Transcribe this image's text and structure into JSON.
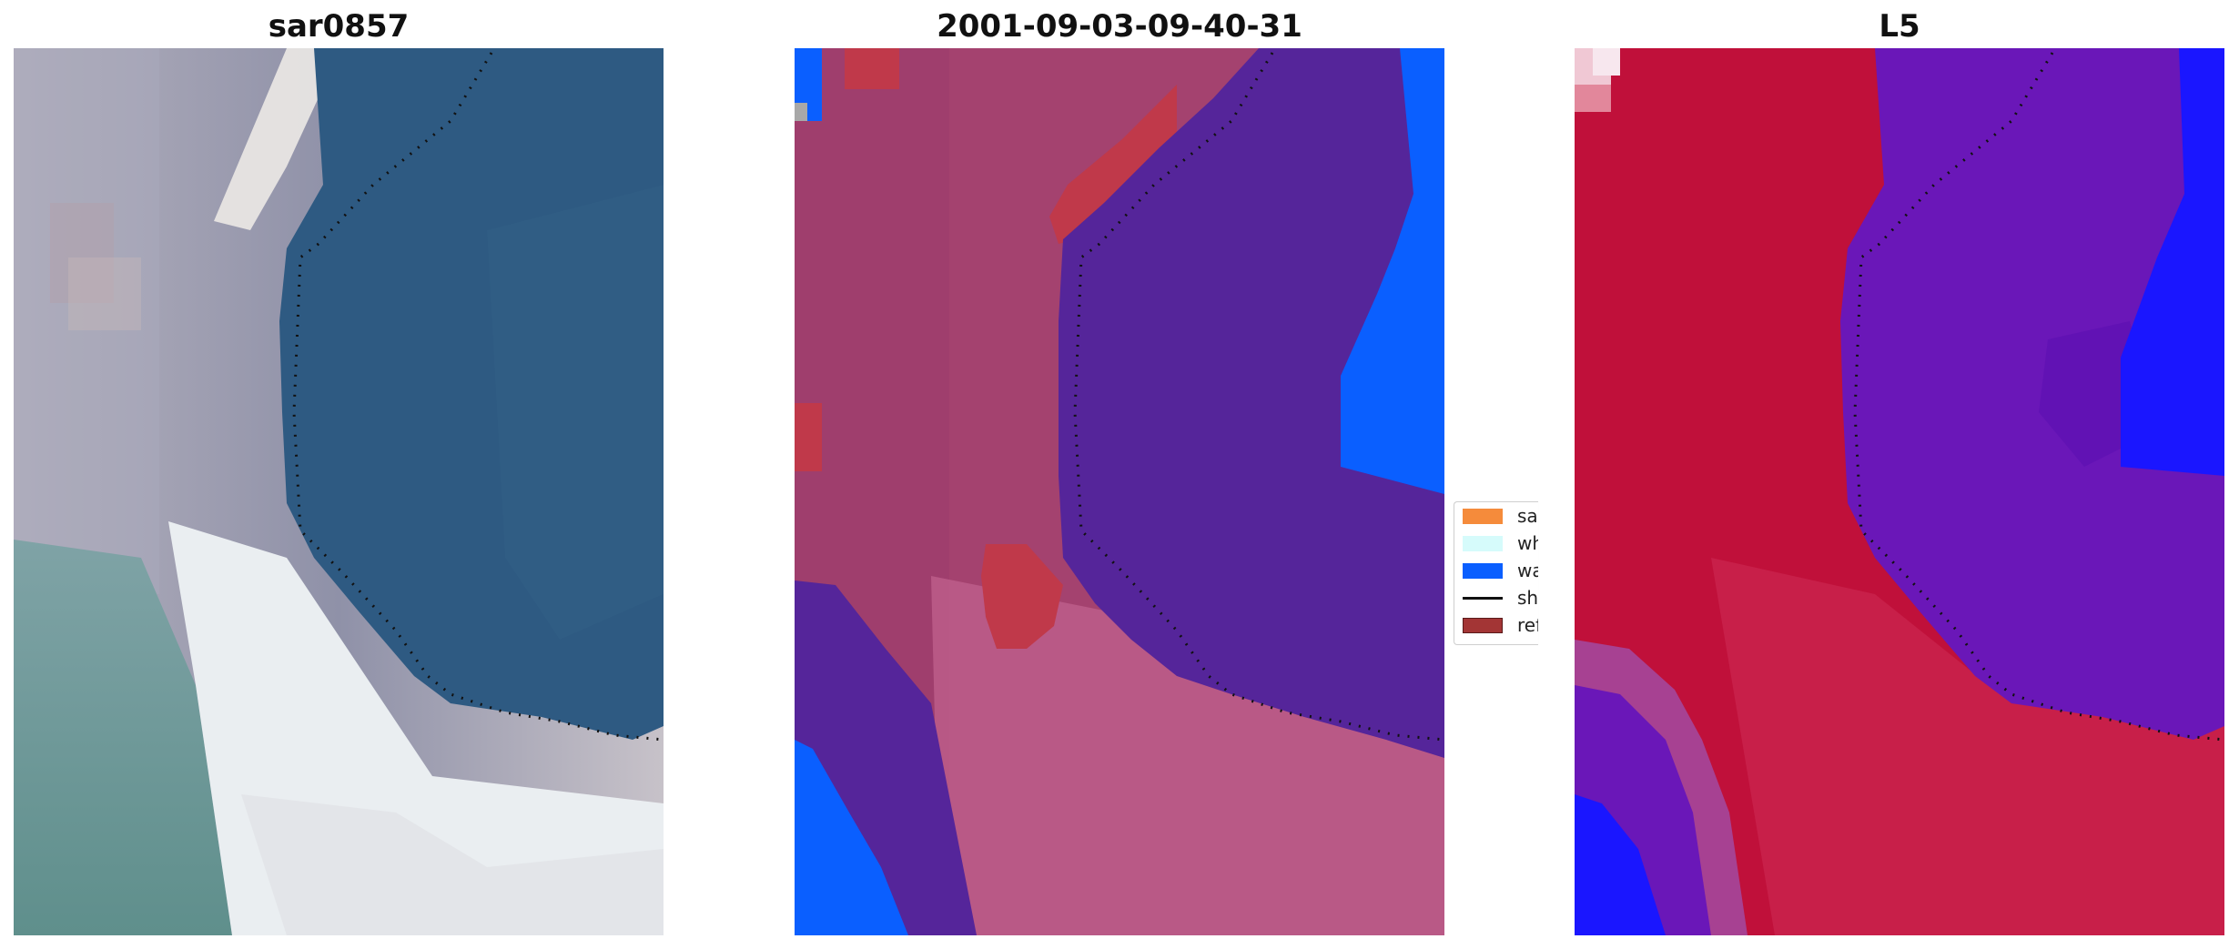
{
  "panels": [
    {
      "title": "sar0857"
    },
    {
      "title": "2001-09-03-09-40-31"
    },
    {
      "title": "L5"
    }
  ],
  "legend": {
    "items": [
      {
        "label": "sand",
        "color": "#f58b3b",
        "kind": "patch"
      },
      {
        "label": "whitewater",
        "color": "#d6fbfb",
        "kind": "patch"
      },
      {
        "label": "water",
        "color": "#0a5fff",
        "kind": "patch"
      },
      {
        "label": "shoreline",
        "color": "#111111",
        "kind": "line"
      },
      {
        "label": "reference",
        "color": "#a33535",
        "kind": "patch"
      }
    ]
  },
  "colors": {
    "water_class": "#0a5fff",
    "sea_class": "#55259a",
    "land_class": "#a4426f",
    "reference_class": "#c0394a",
    "rgb_water": "#2e5a82",
    "rgb_beach": "#eef2f4",
    "index_positive": "#c0103a",
    "index_negative": "#6a17b8"
  }
}
